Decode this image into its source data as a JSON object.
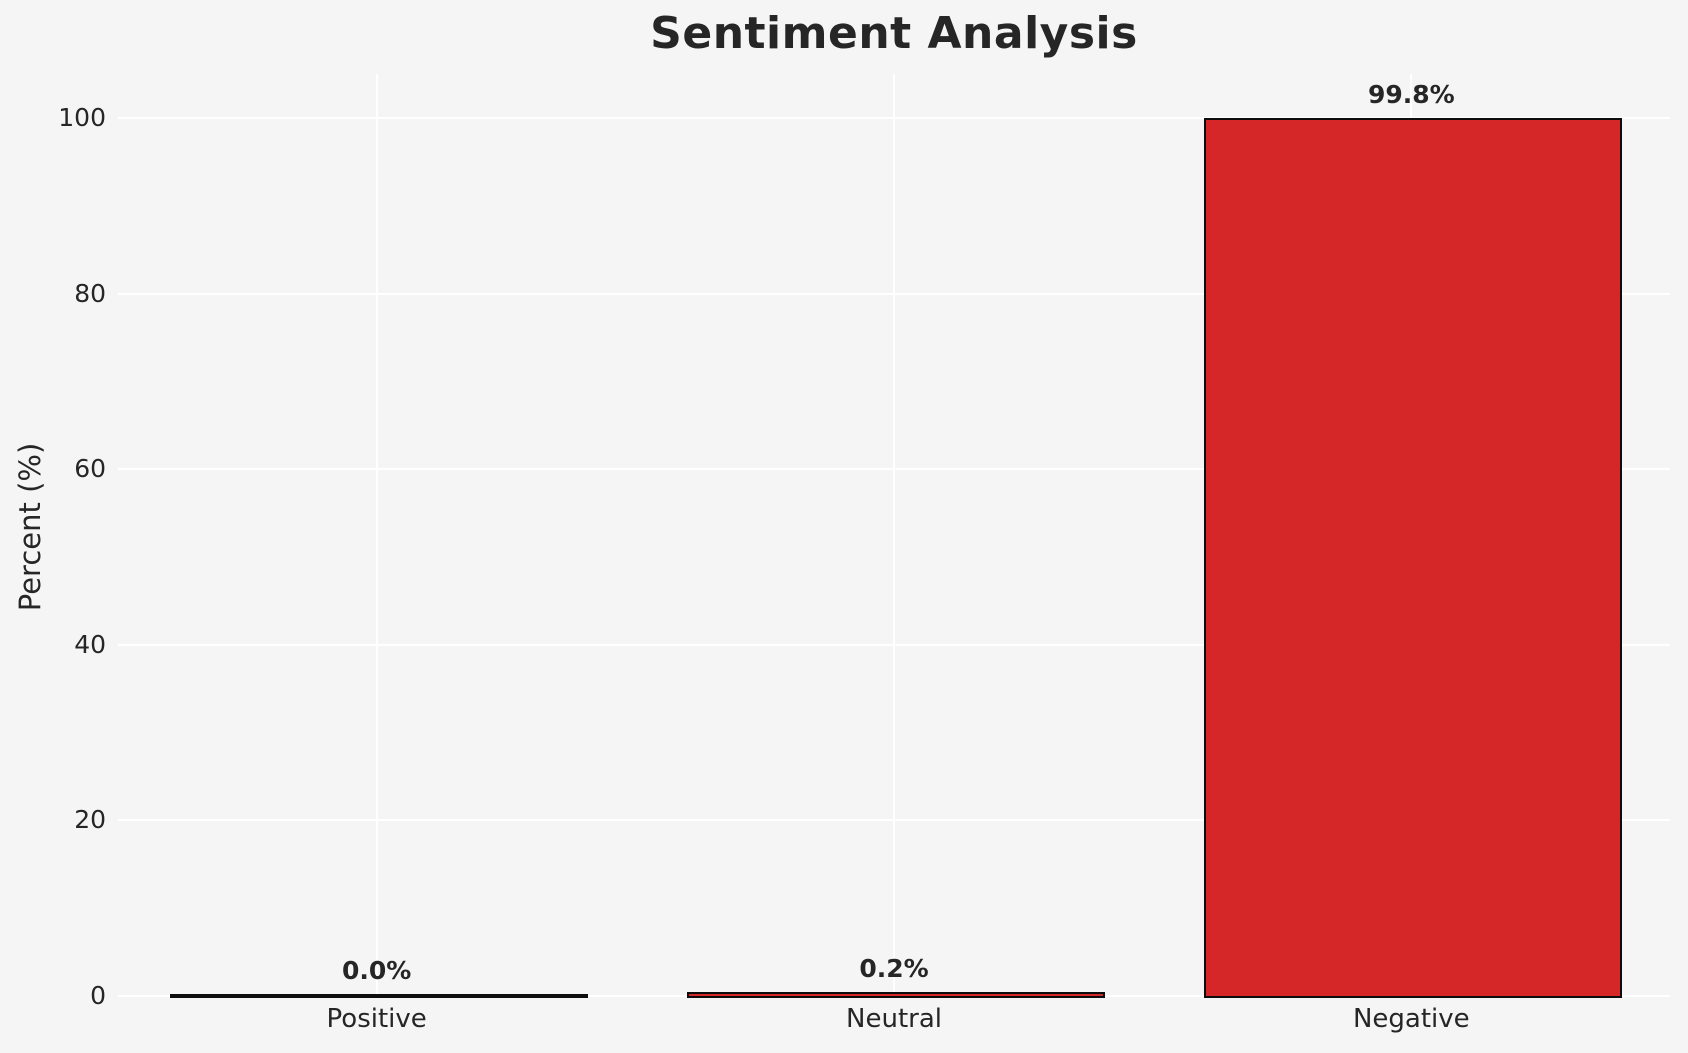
{
  "chart_data": {
    "type": "bar",
    "title": "Sentiment Analysis",
    "xlabel": "",
    "ylabel": "Percent (%)",
    "categories": [
      "Positive",
      "Neutral",
      "Negative"
    ],
    "values": [
      0.0,
      0.2,
      99.8
    ],
    "value_labels": [
      "0.0%",
      "0.2%",
      "99.8%"
    ],
    "yticks": [
      0,
      20,
      40,
      60,
      80,
      100
    ],
    "ylim": [
      0,
      105
    ],
    "grid": true,
    "legend": false,
    "bar_width_fraction": 0.8,
    "colors": {
      "bar_fill": "#d62728",
      "bar_edge": "#0d0d0d",
      "background": "#f5f5f5",
      "gridline": "#ffffff",
      "text": "#262626"
    }
  }
}
